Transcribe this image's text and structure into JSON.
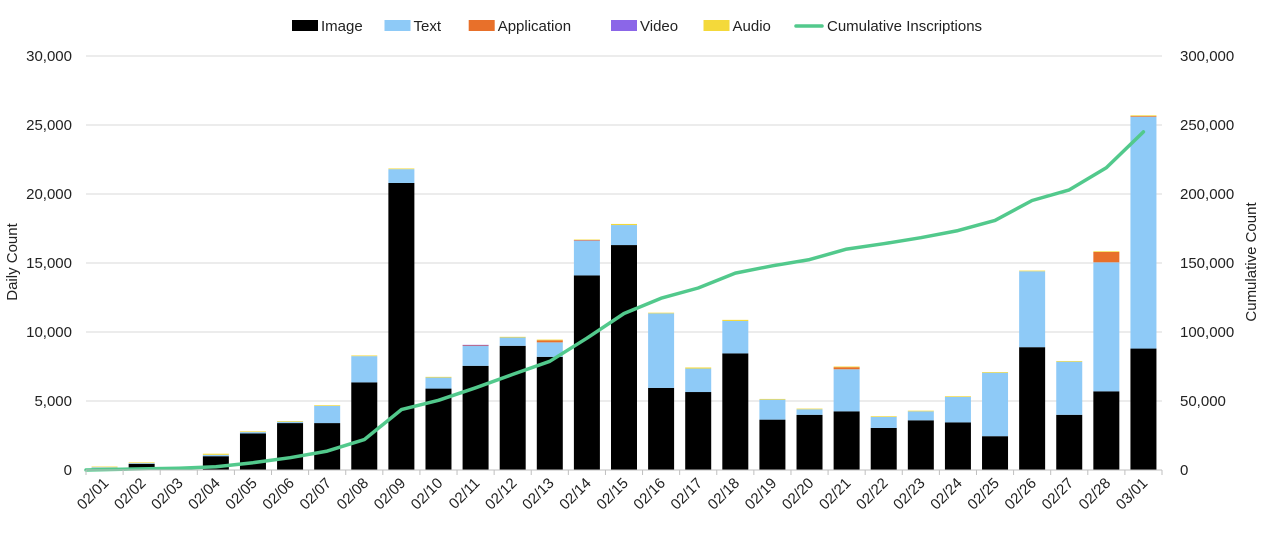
{
  "chart_data": {
    "type": "bar",
    "stacked": true,
    "title": "",
    "ylabel": "Daily Count",
    "y2label": "Cumulative Count",
    "ylim": [
      0,
      30000
    ],
    "y2lim": [
      0,
      300000
    ],
    "yticks": [
      "0",
      "5,000",
      "10,000",
      "15,000",
      "20,000",
      "25,000",
      "30,000"
    ],
    "y2ticks": [
      "0",
      "50,000",
      "100,000",
      "150,000",
      "200,000",
      "250,000",
      "300,000"
    ],
    "legend_position": "top-center",
    "grid": true,
    "categories": [
      "02/01",
      "02/02",
      "02/03",
      "02/04",
      "02/05",
      "02/06",
      "02/07",
      "02/08",
      "02/09",
      "02/10",
      "02/11",
      "02/12",
      "02/13",
      "02/14",
      "02/15",
      "02/16",
      "02/17",
      "02/18",
      "02/19",
      "02/20",
      "02/21",
      "02/22",
      "02/23",
      "02/24",
      "02/25",
      "02/26",
      "02/27",
      "02/28",
      "03/01"
    ],
    "series": [
      {
        "name": "Image",
        "color": "#000000",
        "values": [
          100,
          450,
          0,
          1000,
          2650,
          3400,
          3400,
          6350,
          20800,
          5900,
          7550,
          9000,
          8200,
          14100,
          16300,
          5950,
          5650,
          8450,
          3650,
          4000,
          4250,
          3050,
          3600,
          3450,
          2450,
          8900,
          4000,
          5700,
          8800
        ]
      },
      {
        "name": "Text",
        "color": "#8ecaf7",
        "values": [
          100,
          50,
          0,
          100,
          100,
          100,
          1250,
          1900,
          1000,
          800,
          1450,
          600,
          1050,
          2500,
          1450,
          5400,
          1700,
          2350,
          1450,
          400,
          3050,
          800,
          650,
          1850,
          4600,
          5500,
          3850,
          9350,
          16800
        ]
      },
      {
        "name": "Application",
        "color": "#e8702a",
        "values": [
          0,
          0,
          0,
          0,
          0,
          0,
          0,
          0,
          0,
          0,
          20,
          0,
          150,
          30,
          0,
          0,
          0,
          0,
          0,
          0,
          150,
          0,
          0,
          0,
          0,
          0,
          0,
          750,
          50
        ]
      },
      {
        "name": "Video",
        "color": "#8b66e8",
        "values": [
          0,
          0,
          0,
          0,
          0,
          0,
          0,
          0,
          0,
          0,
          50,
          0,
          0,
          20,
          0,
          0,
          0,
          0,
          0,
          0,
          0,
          0,
          0,
          0,
          0,
          0,
          0,
          0,
          0
        ]
      },
      {
        "name": "Audio",
        "color": "#f4d93a",
        "values": [
          50,
          50,
          0,
          80,
          50,
          50,
          50,
          50,
          50,
          50,
          0,
          50,
          50,
          50,
          80,
          50,
          80,
          80,
          50,
          50,
          50,
          50,
          50,
          50,
          50,
          50,
          50,
          50,
          50
        ]
      }
    ],
    "line_series": {
      "name": "Cumulative Inscriptions",
      "color": "#52c98c",
      "axis": "right",
      "values": [
        300,
        800,
        1300,
        2400,
        5300,
        8900,
        13700,
        22000,
        43800,
        50500,
        59600,
        69300,
        78800,
        95500,
        113400,
        124500,
        131900,
        142700,
        148000,
        152500,
        160100,
        164000,
        168300,
        173500,
        180900,
        195300,
        203000,
        219000,
        245000
      ]
    }
  }
}
